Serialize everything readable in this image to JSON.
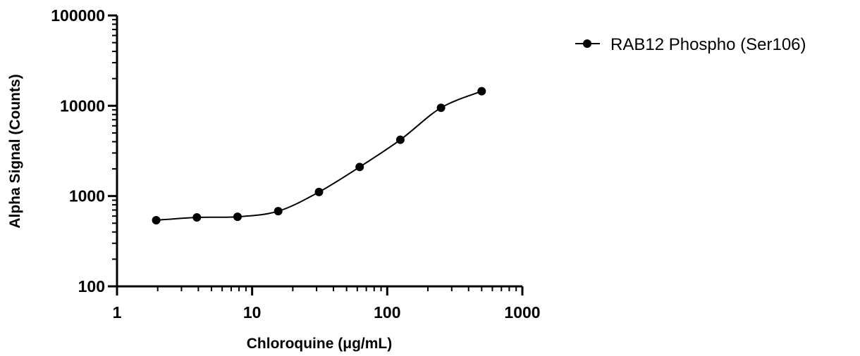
{
  "chart_data": {
    "type": "scatter",
    "title": "",
    "xlabel": "Chloroquine (μg/mL)",
    "ylabel": "Alpha Signal (Counts)",
    "xscale": "log",
    "yscale": "log",
    "xlim": [
      1,
      1000
    ],
    "ylim": [
      100,
      100000
    ],
    "xticks": [
      1,
      10,
      100,
      1000
    ],
    "xtick_labels": [
      "1",
      "10",
      "100",
      "1000"
    ],
    "yticks": [
      100,
      1000,
      10000,
      100000
    ],
    "ytick_labels": [
      "100",
      "1000",
      "10000",
      "100000"
    ],
    "grid": false,
    "legend_position": "right",
    "series": [
      {
        "name": "RAB12 Phospho (Ser106)",
        "color": "#000000",
        "marker": "circle",
        "fit": "sigmoidal curve",
        "x": [
          1.95,
          3.9,
          7.8,
          15.6,
          31.25,
          62.5,
          125,
          250,
          500
        ],
        "y": [
          540,
          580,
          590,
          680,
          1110,
          2100,
          4200,
          9500,
          14500
        ]
      }
    ]
  }
}
